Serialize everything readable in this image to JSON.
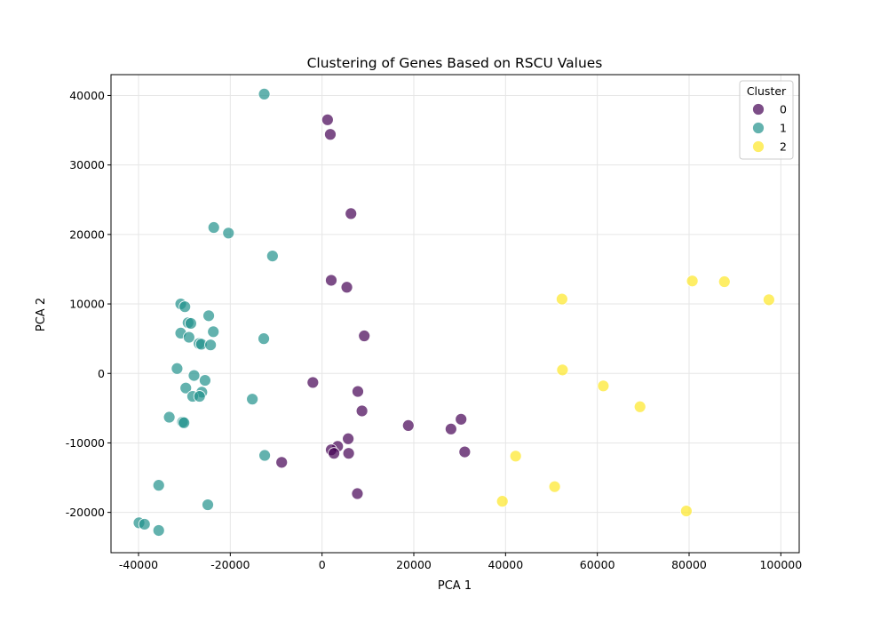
{
  "chart_data": {
    "type": "scatter",
    "title": "Clustering of Genes Based on RSCU Values",
    "xlabel": "PCA 1",
    "ylabel": "PCA 2",
    "xlim": [
      -46000,
      104000
    ],
    "ylim": [
      -25800,
      43000
    ],
    "xticks": [
      -40000,
      -20000,
      0,
      20000,
      40000,
      60000,
      80000,
      100000
    ],
    "yticks": [
      -20000,
      -10000,
      0,
      10000,
      20000,
      30000,
      40000
    ],
    "grid": true,
    "legend": {
      "title": "Cluster",
      "placement": "top-right"
    },
    "series": [
      {
        "name": "0",
        "color": "#440154",
        "points": [
          [
            1200,
            36500
          ],
          [
            1800,
            34400
          ],
          [
            6300,
            23000
          ],
          [
            2000,
            13400
          ],
          [
            5400,
            12400
          ],
          [
            9200,
            5400
          ],
          [
            -2000,
            -1300
          ],
          [
            7800,
            -2600
          ],
          [
            8700,
            -5400
          ],
          [
            18800,
            -7500
          ],
          [
            30300,
            -6600
          ],
          [
            28100,
            -8000
          ],
          [
            5700,
            -9400
          ],
          [
            31100,
            -11300
          ],
          [
            3400,
            -10500
          ],
          [
            2000,
            -11000
          ],
          [
            2600,
            -11500
          ],
          [
            5800,
            -11500
          ],
          [
            -8800,
            -12800
          ],
          [
            7700,
            -17300
          ]
        ]
      },
      {
        "name": "1",
        "color": "#21918c",
        "points": [
          [
            -12600,
            40200
          ],
          [
            -23600,
            21000
          ],
          [
            -20400,
            20200
          ],
          [
            -10800,
            16900
          ],
          [
            -30800,
            10000
          ],
          [
            -29900,
            9600
          ],
          [
            -24700,
            8300
          ],
          [
            -29200,
            7300
          ],
          [
            -28600,
            7200
          ],
          [
            -30800,
            5800
          ],
          [
            -29000,
            5200
          ],
          [
            -23700,
            6000
          ],
          [
            -12700,
            5000
          ],
          [
            -26800,
            4300
          ],
          [
            -26300,
            4200
          ],
          [
            -24300,
            4100
          ],
          [
            -31600,
            700
          ],
          [
            -27900,
            -300
          ],
          [
            -25500,
            -1000
          ],
          [
            -29700,
            -2100
          ],
          [
            -26200,
            -2700
          ],
          [
            -28200,
            -3300
          ],
          [
            -26700,
            -3300
          ],
          [
            -15200,
            -3700
          ],
          [
            -33300,
            -6300
          ],
          [
            -30400,
            -7000
          ],
          [
            -30100,
            -7100
          ],
          [
            -12500,
            -11800
          ],
          [
            -35600,
            -16100
          ],
          [
            -24900,
            -18900
          ],
          [
            -39900,
            -21500
          ],
          [
            -38700,
            -21700
          ],
          [
            -35600,
            -22600
          ]
        ]
      },
      {
        "name": "2",
        "color": "#fde725",
        "points": [
          [
            52300,
            10700
          ],
          [
            80700,
            13300
          ],
          [
            87700,
            13200
          ],
          [
            97400,
            10600
          ],
          [
            52400,
            500
          ],
          [
            61300,
            -1800
          ],
          [
            69300,
            -4800
          ],
          [
            42200,
            -11900
          ],
          [
            50700,
            -16300
          ],
          [
            39300,
            -18400
          ],
          [
            79400,
            -19800
          ]
        ]
      }
    ]
  }
}
